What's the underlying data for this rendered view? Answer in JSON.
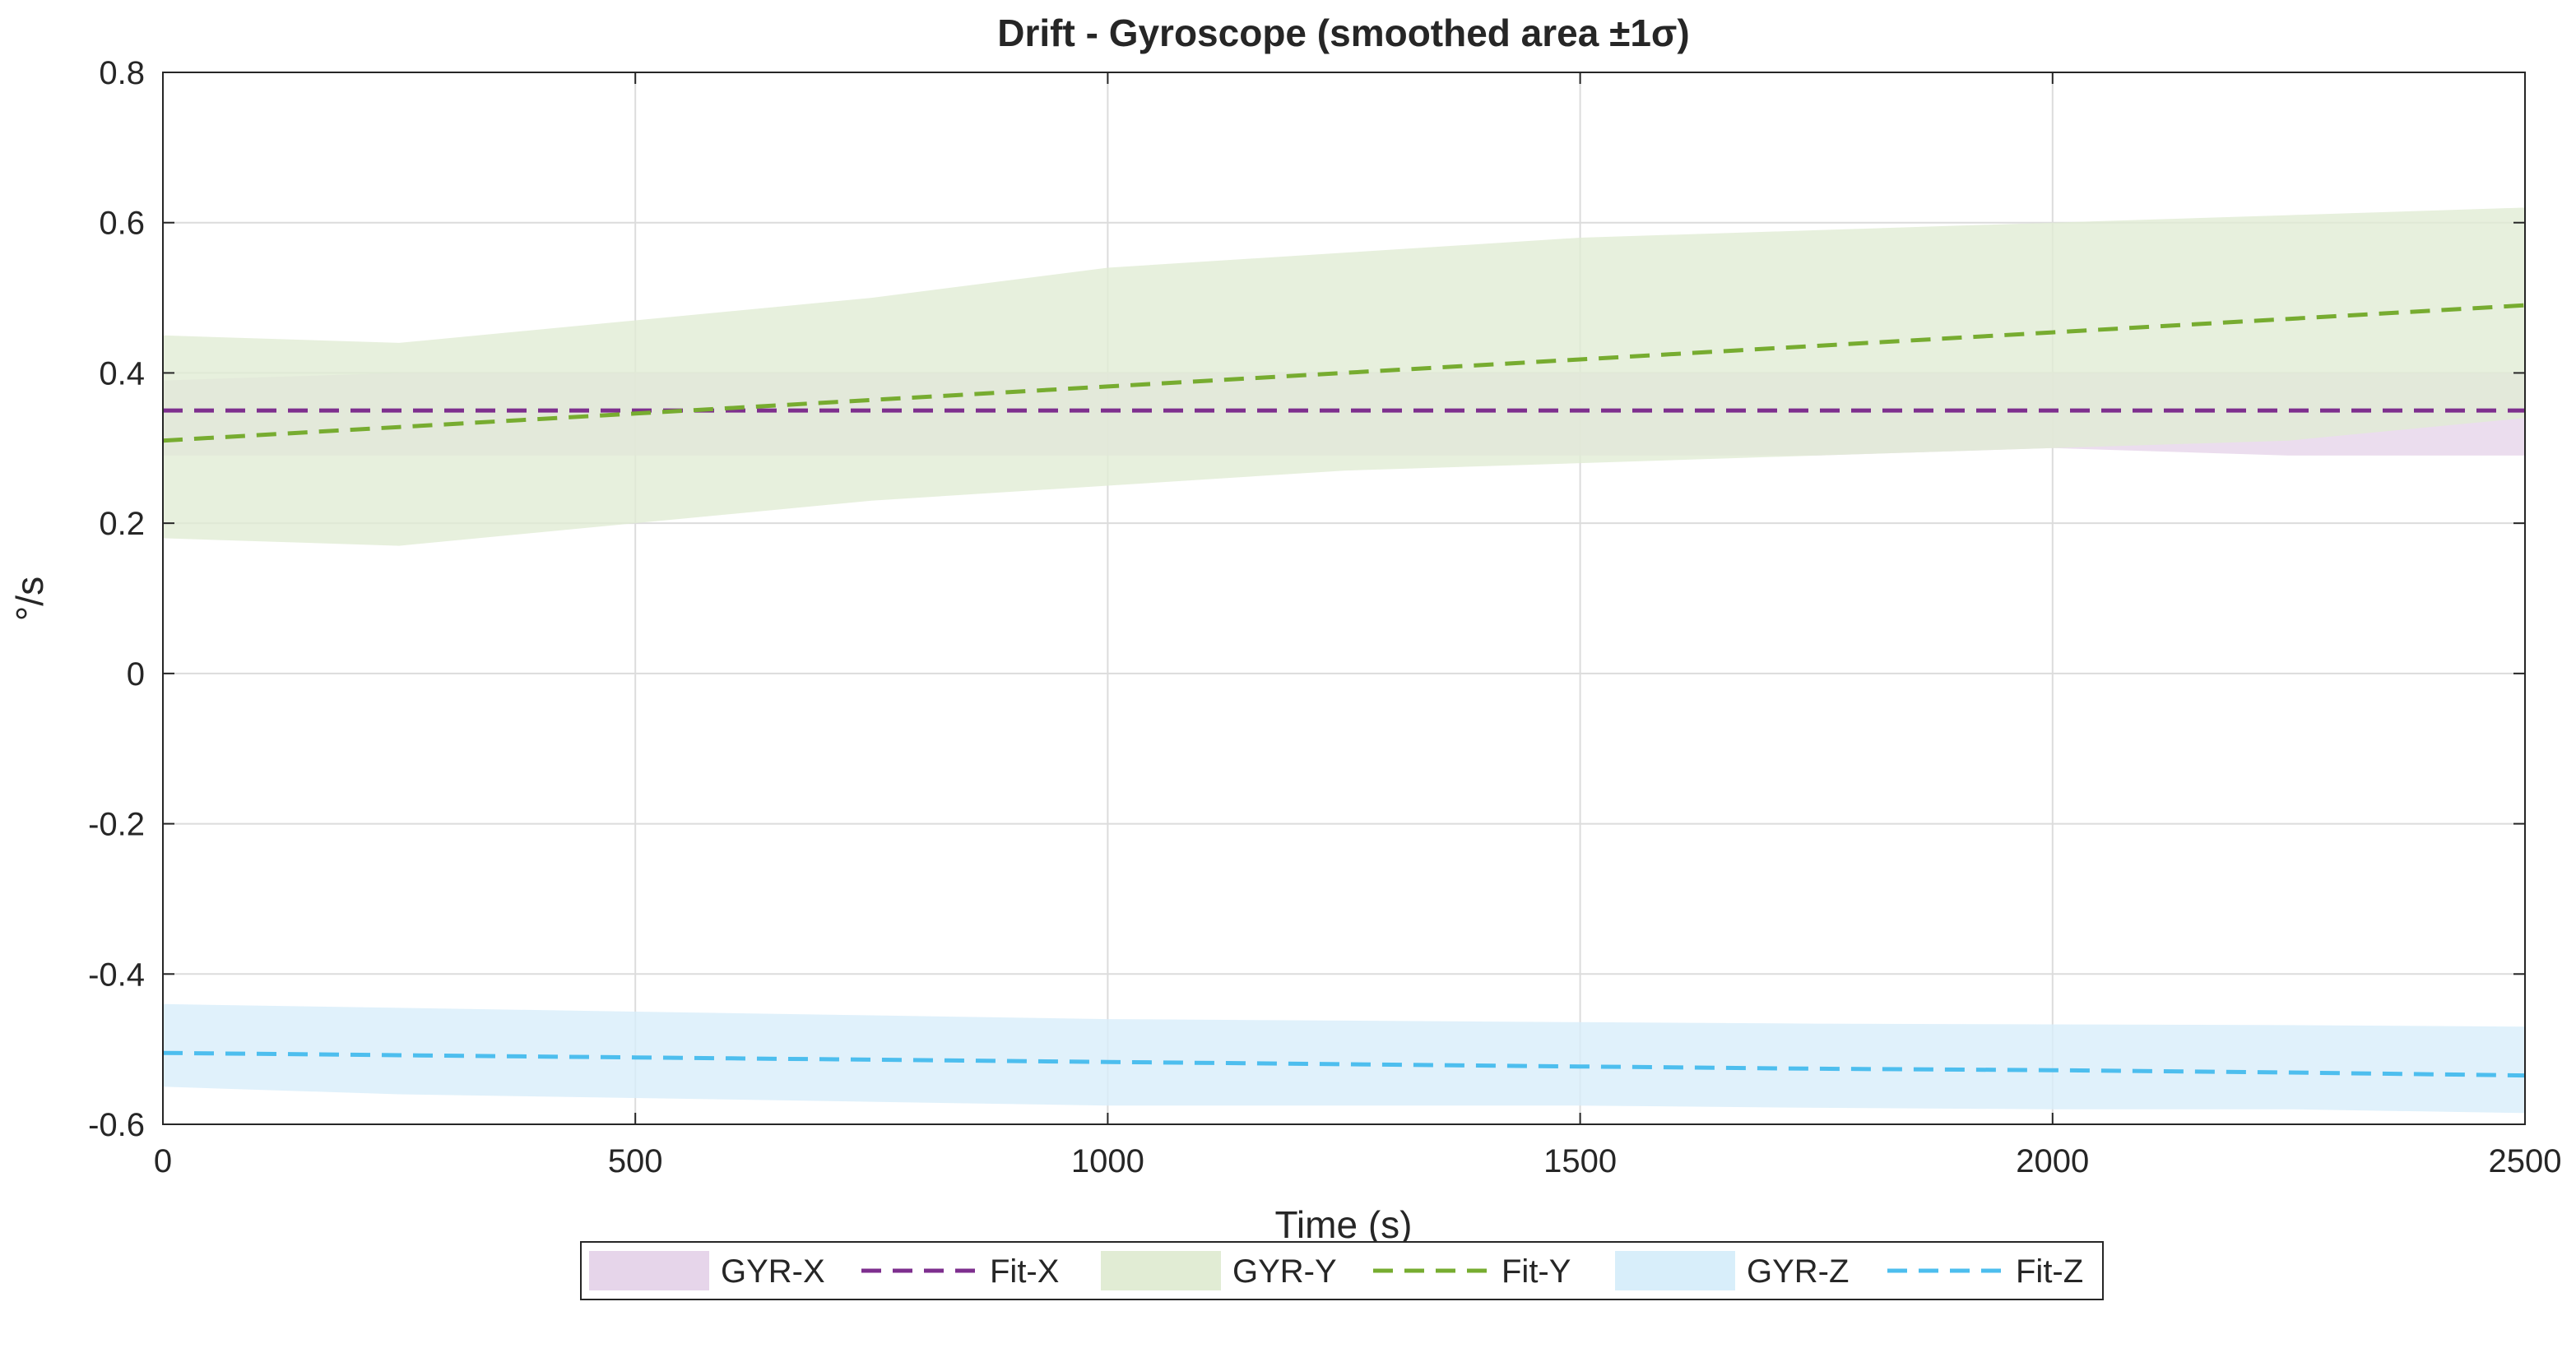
{
  "chart_data": {
    "type": "area",
    "title": "Drift - Gyroscope (smoothed area ±1σ)",
    "xlabel": "Time (s)",
    "ylabel": "°/s",
    "xlim": [
      0,
      2500
    ],
    "ylim": [
      -0.6,
      0.8
    ],
    "xticks": [
      0,
      500,
      1000,
      1500,
      2000,
      2500
    ],
    "xtick_labels": [
      "0",
      "500",
      "1000",
      "1500",
      "2000",
      "2500"
    ],
    "yticks": [
      0.8,
      0.6,
      0.4,
      0.2,
      0,
      -0.2,
      -0.4,
      -0.6
    ],
    "ytick_labels": [
      "0.8",
      "0.6",
      "0.4",
      "0.2",
      "0",
      "-0.2",
      "-0.4",
      "-0.6"
    ],
    "grid": true,
    "legend_position": "bottom-outside",
    "x": [
      0,
      250,
      500,
      750,
      1000,
      1250,
      1500,
      1750,
      2000,
      2250,
      2500
    ],
    "series": [
      {
        "name": "GYR-X",
        "kind": "band",
        "color": "#e6d5ea",
        "lower": [
          0.29,
          0.29,
          0.29,
          0.29,
          0.29,
          0.29,
          0.29,
          0.29,
          0.3,
          0.29,
          0.29
        ],
        "upper": [
          0.39,
          0.4,
          0.4,
          0.4,
          0.4,
          0.4,
          0.4,
          0.4,
          0.4,
          0.4,
          0.4
        ]
      },
      {
        "name": "Fit-X",
        "kind": "dashed-line",
        "color": "#7e2f8e",
        "values": [
          0.35,
          0.35,
          0.35,
          0.35,
          0.35,
          0.35,
          0.35,
          0.35,
          0.35,
          0.35,
          0.35
        ]
      },
      {
        "name": "GYR-Y",
        "kind": "band",
        "color": "#e1ecd4",
        "lower": [
          0.18,
          0.17,
          0.2,
          0.23,
          0.25,
          0.27,
          0.28,
          0.29,
          0.3,
          0.31,
          0.34
        ],
        "upper": [
          0.45,
          0.44,
          0.47,
          0.5,
          0.54,
          0.56,
          0.58,
          0.59,
          0.6,
          0.61,
          0.62
        ]
      },
      {
        "name": "Fit-Y",
        "kind": "dashed-line",
        "color": "#77ac30",
        "values": [
          0.31,
          0.328,
          0.346,
          0.364,
          0.382,
          0.4,
          0.418,
          0.436,
          0.454,
          0.472,
          0.49
        ]
      },
      {
        "name": "GYR-Z",
        "kind": "band",
        "color": "#d8eefa",
        "lower": [
          -0.55,
          -0.56,
          -0.565,
          -0.57,
          -0.575,
          -0.575,
          -0.575,
          -0.578,
          -0.58,
          -0.58,
          -0.585
        ],
        "upper": [
          -0.44,
          -0.445,
          -0.45,
          -0.455,
          -0.46,
          -0.462,
          -0.464,
          -0.466,
          -0.467,
          -0.468,
          -0.47
        ]
      },
      {
        "name": "Fit-Z",
        "kind": "dashed-line",
        "color": "#4dbeee",
        "values": [
          -0.505,
          -0.508,
          -0.511,
          -0.514,
          -0.517,
          -0.52,
          -0.523,
          -0.526,
          -0.528,
          -0.531,
          -0.535
        ]
      }
    ]
  }
}
